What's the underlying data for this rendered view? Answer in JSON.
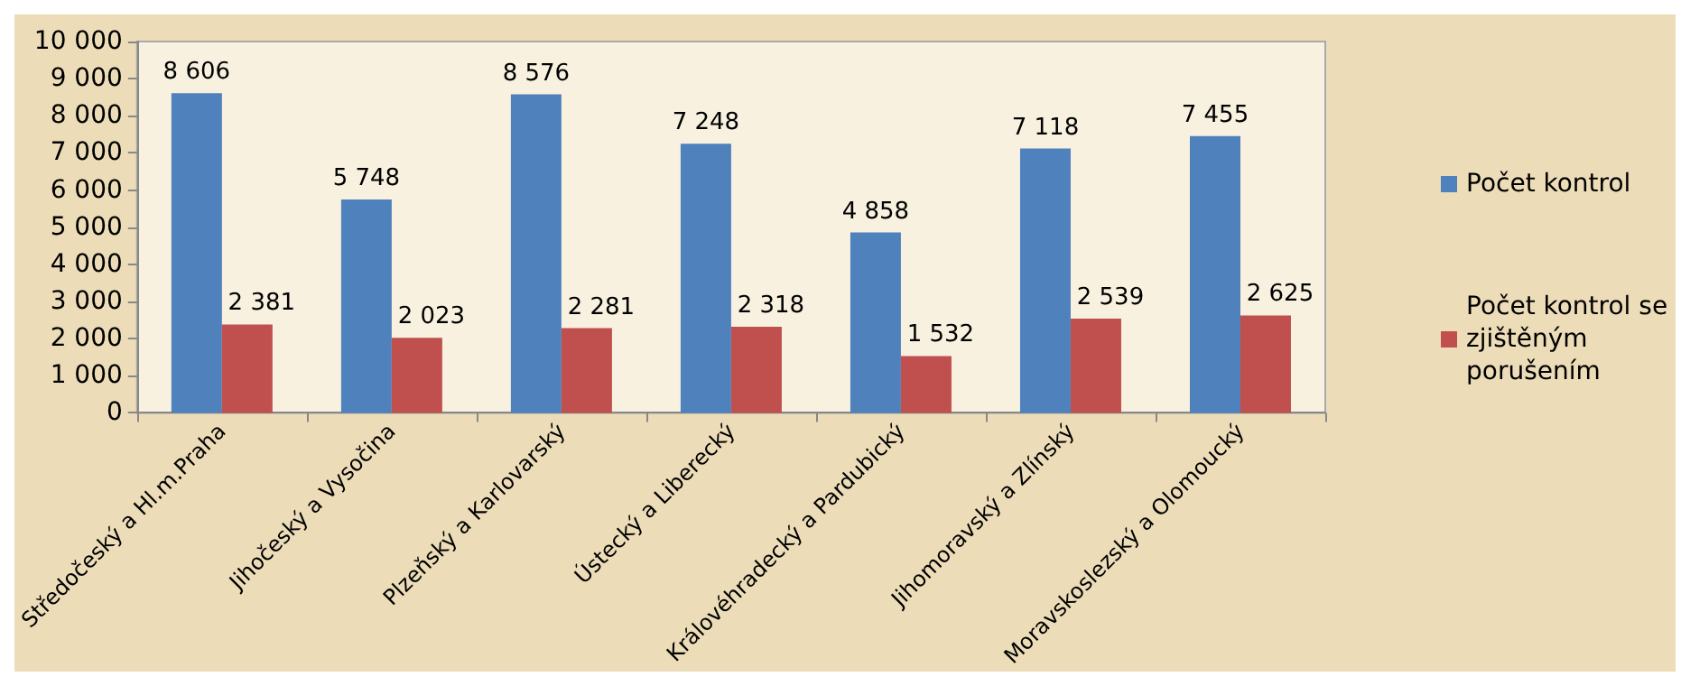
{
  "chart_data": {
    "type": "bar",
    "categories": [
      "Středočeský a Hl.m.Praha",
      "Jihočeský a Vysočina",
      "Plzeňský a Karlovarský",
      "Ústecký a Liberecký",
      "Královéhradecký a Pardubický",
      "Jihomoravský a Zlínský",
      "Moravskoslezský a Olomoucký"
    ],
    "series": [
      {
        "name": "Počet kontrol",
        "color": "#4f81bd",
        "values": [
          8606,
          5748,
          8576,
          7248,
          4858,
          7118,
          7455
        ]
      },
      {
        "name": "Počet kontrol se zjištěným porušením",
        "color": "#c0504d",
        "values": [
          2381,
          2023,
          2281,
          2318,
          1532,
          2539,
          2625
        ]
      }
    ],
    "ylim": [
      0,
      10000
    ],
    "yticks": [
      0,
      {
        "value": 1000,
        "label": "1 000"
      },
      {
        "value": 2000,
        "label": "2 000"
      },
      {
        "value": 3000,
        "label": "3 000"
      },
      {
        "value": 4000,
        "label": "4 000"
      },
      {
        "value": 5000,
        "label": "5 000"
      },
      {
        "value": 6000,
        "label": "6 000"
      },
      {
        "value": 7000,
        "label": "7 000"
      },
      {
        "value": 8000,
        "label": "8 000"
      },
      {
        "value": 9000,
        "label": "9 000"
      },
      {
        "value": 10000,
        "label": "10 000"
      }
    ],
    "data_labels": true,
    "grid": false,
    "legend": "right"
  }
}
